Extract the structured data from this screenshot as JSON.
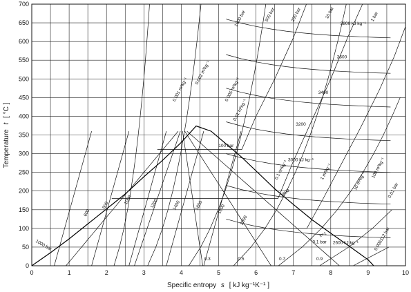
{
  "chart_data": {
    "type": "line",
    "title": "",
    "xlabel": "Specific entropy",
    "xlabel_symbol": "s",
    "xlabel_unit": "[ kJ kg⁻¹K⁻¹ ]",
    "ylabel": "Temperature",
    "ylabel_symbol": "t",
    "ylabel_unit": "[ °C ]",
    "xlim": [
      0,
      10
    ],
    "ylim": [
      0,
      700
    ],
    "xticks": [
      0,
      1,
      2,
      3,
      4,
      5,
      6,
      7,
      8,
      9,
      10
    ],
    "yticks": [
      0,
      50,
      100,
      150,
      200,
      250,
      300,
      350,
      400,
      450,
      500,
      550,
      600,
      650,
      700
    ],
    "grid": true,
    "series": [
      {
        "kind": "saturation_dome",
        "x": [
          0,
          0.5,
          1.0,
          1.5,
          2.0,
          2.5,
          3.0,
          3.5,
          4.0,
          4.4,
          4.8,
          5.2,
          5.6,
          6.0,
          6.5,
          7.0,
          7.5,
          8.0,
          8.5,
          9.0,
          9.15
        ],
        "y": [
          0,
          35,
          72,
          112,
          152,
          192,
          238,
          282,
          330,
          374,
          360,
          326,
          292,
          254,
          206,
          164,
          123,
          87,
          52,
          16,
          0
        ]
      },
      {
        "kind": "isobar",
        "name": "1 bar",
        "x": [
          1.3,
          7.36,
          7.8,
          8.3,
          8.8,
          9.3,
          9.7,
          10
        ],
        "y": [
          100,
          100,
          180,
          275,
          370,
          470,
          560,
          640
        ]
      },
      {
        "kind": "isobar",
        "name": "10 bar",
        "x": [
          2.14,
          6.59,
          7.0,
          7.5,
          8.0,
          8.45,
          8.85
        ],
        "y": [
          180,
          180,
          280,
          390,
          500,
          610,
          700
        ]
      },
      {
        "kind": "isobar",
        "name": "100 bar",
        "x": [
          3.36,
          5.62,
          6.0,
          6.5,
          7.0,
          7.35
        ],
        "y": [
          311,
          311,
          400,
          500,
          610,
          700
        ]
      }
    ],
    "data_labels": [
      "1000 bar",
      "500 bar",
      "200 bar",
      "10 bar",
      "1 bar",
      "100 bar",
      "0.1 bar",
      "1000 bar",
      "3800 kJ kg⁻¹",
      "3600",
      "3400",
      "3200",
      "3000 kJ kg⁻¹",
      "2800",
      "2600 kJ kg⁻¹",
      "0.001 m³kg⁻¹",
      "0.002 m³kg⁻¹",
      "0.005 m³kg⁻¹",
      "0.01 m³kg⁻¹",
      "0.1 m³kg⁻¹",
      "1 m³kg⁻¹",
      "10 m³kg⁻¹",
      "100 m³kg⁻¹",
      "0.01 bar",
      "0.006112 bar",
      "x=1",
      "2000",
      "1800",
      "1600",
      "1400",
      "1200",
      "1000",
      "800",
      "600",
      "0.3",
      "0.5",
      "0.7",
      "0.9"
    ]
  }
}
